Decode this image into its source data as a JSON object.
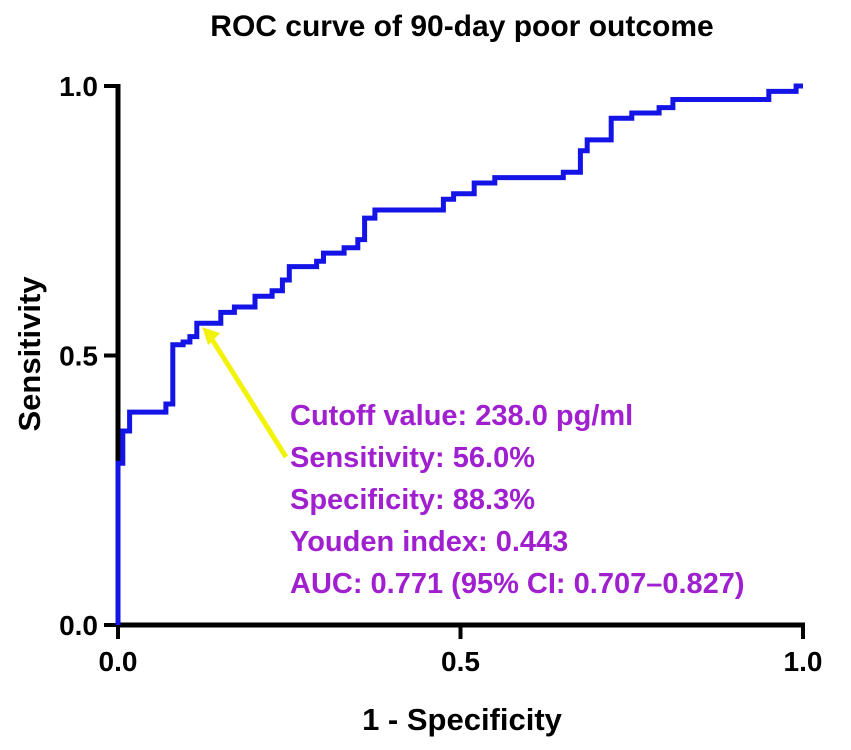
{
  "chart_data": {
    "type": "line",
    "title": "ROC curve of 90-day poor outcome",
    "xlabel": "1 - Specificity",
    "ylabel": "Sensitivity",
    "xlim": [
      0,
      1
    ],
    "ylim": [
      0,
      1
    ],
    "x_ticks": [
      0,
      0.5,
      1
    ],
    "x_tick_labels": [
      "0.0",
      "0.5",
      "1.0"
    ],
    "y_ticks": [
      0,
      0.5,
      1
    ],
    "y_tick_labels": [
      "0.0",
      "0.5",
      "1.0"
    ],
    "grid": false,
    "colors": {
      "curve": "#1414e6",
      "axis": "#000000",
      "arrow": "#f2f20a",
      "annotation": "#a020d0"
    },
    "series": [
      {
        "name": "ROC curve",
        "points": [
          [
            0.0,
            0.0
          ],
          [
            0.0,
            0.3
          ],
          [
            0.007,
            0.3
          ],
          [
            0.007,
            0.36
          ],
          [
            0.017,
            0.36
          ],
          [
            0.017,
            0.395
          ],
          [
            0.07,
            0.395
          ],
          [
            0.07,
            0.41
          ],
          [
            0.08,
            0.41
          ],
          [
            0.08,
            0.52
          ],
          [
            0.095,
            0.52
          ],
          [
            0.095,
            0.525
          ],
          [
            0.105,
            0.525
          ],
          [
            0.105,
            0.535
          ],
          [
            0.115,
            0.535
          ],
          [
            0.115,
            0.56
          ],
          [
            0.15,
            0.56
          ],
          [
            0.15,
            0.58
          ],
          [
            0.17,
            0.58
          ],
          [
            0.17,
            0.59
          ],
          [
            0.2,
            0.59
          ],
          [
            0.2,
            0.61
          ],
          [
            0.225,
            0.61
          ],
          [
            0.225,
            0.62
          ],
          [
            0.24,
            0.62
          ],
          [
            0.24,
            0.64
          ],
          [
            0.25,
            0.64
          ],
          [
            0.25,
            0.665
          ],
          [
            0.29,
            0.665
          ],
          [
            0.29,
            0.675
          ],
          [
            0.3,
            0.675
          ],
          [
            0.3,
            0.69
          ],
          [
            0.33,
            0.69
          ],
          [
            0.33,
            0.7
          ],
          [
            0.35,
            0.7
          ],
          [
            0.35,
            0.715
          ],
          [
            0.36,
            0.715
          ],
          [
            0.36,
            0.755
          ],
          [
            0.375,
            0.755
          ],
          [
            0.375,
            0.77
          ],
          [
            0.475,
            0.77
          ],
          [
            0.475,
            0.79
          ],
          [
            0.49,
            0.79
          ],
          [
            0.49,
            0.8
          ],
          [
            0.52,
            0.8
          ],
          [
            0.52,
            0.82
          ],
          [
            0.55,
            0.82
          ],
          [
            0.55,
            0.83
          ],
          [
            0.65,
            0.83
          ],
          [
            0.65,
            0.84
          ],
          [
            0.675,
            0.84
          ],
          [
            0.675,
            0.88
          ],
          [
            0.685,
            0.88
          ],
          [
            0.685,
            0.9
          ],
          [
            0.72,
            0.9
          ],
          [
            0.72,
            0.94
          ],
          [
            0.75,
            0.94
          ],
          [
            0.75,
            0.95
          ],
          [
            0.79,
            0.95
          ],
          [
            0.79,
            0.96
          ],
          [
            0.81,
            0.96
          ],
          [
            0.81,
            0.975
          ],
          [
            0.95,
            0.975
          ],
          [
            0.95,
            0.99
          ],
          [
            0.99,
            0.99
          ],
          [
            0.99,
            1.0
          ],
          [
            1.0,
            1.0
          ]
        ]
      }
    ],
    "cutoff_point": {
      "x": 0.117,
      "y": 0.56
    },
    "annotation_lines": [
      "Cutoff value: 238.0 pg/ml",
      "Sensitivity: 56.0%",
      "Specificity: 88.3%",
      "Youden index: 0.443",
      "AUC: 0.771 (95% CI: 0.707–0.827)"
    ]
  }
}
